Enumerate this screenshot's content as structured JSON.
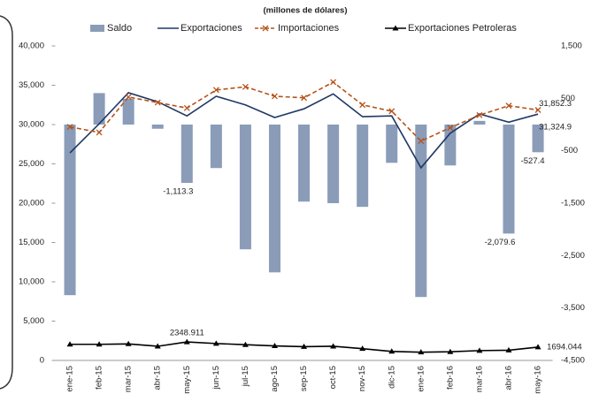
{
  "chart_data": {
    "type": "bar",
    "subtitle": "(millones de dólares)",
    "categories": [
      "ene-15",
      "feb-15",
      "mar-15",
      "abr-15",
      "may-15",
      "jun-15",
      "jul-15",
      "ago-15",
      "sep-15",
      "oct-15",
      "nov-15",
      "dic-15",
      "ene-16",
      "feb-16",
      "mar-16",
      "abr-16",
      "may-16"
    ],
    "ylim": [
      0,
      40000
    ],
    "yticks": [
      0,
      {
        "value": 5000,
        "label": "5,000"
      },
      {
        "value": 10000,
        "label": "10,000"
      },
      {
        "value": 15000,
        "label": "15,000"
      },
      {
        "value": 20000,
        "label": "20,000"
      },
      {
        "value": 25000,
        "label": "25,000"
      },
      {
        "value": 30000,
        "label": "30,000"
      },
      {
        "value": 35000,
        "label": "35,000"
      },
      {
        "value": 40000,
        "label": "40,000"
      }
    ],
    "y2lim": [
      -4500,
      1500
    ],
    "y2ticks": [
      {
        "value": -4500,
        "label": "-4,500"
      },
      {
        "value": -3500,
        "label": "-3,500"
      },
      {
        "value": -2500,
        "label": "-2,500"
      },
      {
        "value": -1500,
        "label": "-1,500"
      },
      -500,
      500,
      {
        "value": 1500,
        "label": "1,500"
      }
    ],
    "series": [
      {
        "name": "Saldo",
        "type": "bar",
        "axis": "y2",
        "color": "#8a9cb8",
        "values": [
          -3255,
          600,
          490,
          -80,
          -1113.3,
          -830,
          -2380,
          -2820,
          -1470,
          -1500,
          -1570,
          -730,
          -3290,
          -780,
          70,
          -2079.6,
          -527.4
        ],
        "value_labels": [
          null,
          null,
          null,
          null,
          "-1,113.3",
          null,
          null,
          null,
          null,
          null,
          null,
          null,
          null,
          null,
          null,
          "-2,079.6",
          "-527.4"
        ]
      },
      {
        "name": "Exportaciones",
        "type": "line",
        "color": "#1f3864",
        "marker": "none",
        "values": [
          26400,
          30100,
          34050,
          32900,
          31100,
          33600,
          32500,
          30900,
          32000,
          33900,
          31000,
          31100,
          24500,
          28900,
          31350,
          30300,
          31324.9
        ],
        "value_labels": [
          null,
          null,
          null,
          null,
          null,
          null,
          null,
          null,
          null,
          null,
          null,
          null,
          null,
          null,
          null,
          null,
          "31,324.9"
        ]
      },
      {
        "name": "Importaciones",
        "type": "line",
        "color": "#b5531a",
        "dash": true,
        "marker": "x",
        "values": [
          29700,
          29000,
          33500,
          32800,
          32100,
          34400,
          34800,
          33600,
          33400,
          35400,
          32500,
          31700,
          27900,
          29600,
          31200,
          32400,
          31852.3
        ],
        "value_labels": [
          null,
          null,
          null,
          null,
          null,
          null,
          null,
          null,
          null,
          null,
          null,
          null,
          null,
          null,
          null,
          null,
          "31,852.3"
        ]
      },
      {
        "name": "Exportaciones Petroleras",
        "type": "line",
        "color": "#000000",
        "marker": "triangle",
        "values": [
          2050,
          2050,
          2100,
          1800,
          2348.911,
          2150,
          2000,
          1850,
          1750,
          1800,
          1500,
          1150,
          1050,
          1100,
          1250,
          1300,
          1694.044
        ],
        "value_labels": [
          null,
          null,
          null,
          null,
          "2348.911",
          null,
          null,
          null,
          null,
          null,
          null,
          null,
          null,
          null,
          null,
          null,
          "1694.044"
        ]
      }
    ]
  }
}
